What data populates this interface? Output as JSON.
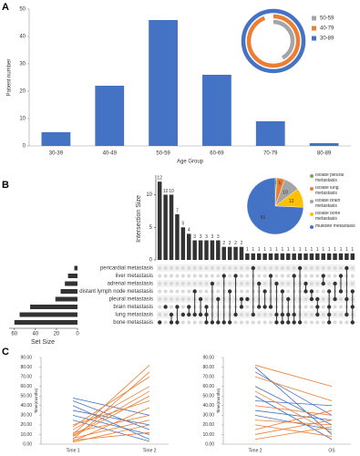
{
  "chart_data": [
    {
      "type": "bar",
      "panel_label": "A",
      "y_label": "Patient number",
      "x_label": "Age Group",
      "categories": [
        "30-39",
        "40-49",
        "50-59",
        "60-69",
        "70-79",
        "80-89"
      ],
      "values": [
        5,
        22,
        46,
        26,
        9,
        1
      ],
      "color": "#4472c4",
      "ylim": [
        0,
        50
      ],
      "yticks": [
        0,
        10,
        20,
        30,
        40,
        50
      ]
    },
    {
      "type": "donut",
      "series": [
        {
          "name": "50-59",
          "color": "#a5a5a5",
          "values": [
            42
          ]
        },
        {
          "name": "40-79",
          "color": "#ed7d31",
          "values": [
            94
          ]
        },
        {
          "name": "30-89",
          "color": "#4472c4",
          "values": [
            100
          ]
        }
      ]
    },
    {
      "type": "upset",
      "panel_label": "B",
      "y_label": "Intersection Size",
      "x_label": "Set Size",
      "sets": [
        "pericardial  metastasis",
        "liver  metastasis",
        "adrenal  metastasis",
        "distant lymph node metastasis",
        "pleural  metastasis",
        "brain  metastasis",
        "lung  metastasis",
        "bone  metastasis"
      ],
      "set_sizes": [
        3,
        9,
        12,
        16,
        21,
        45,
        55,
        60
      ],
      "values": [
        12,
        10,
        10,
        7,
        5,
        4,
        3,
        3,
        3,
        3,
        3,
        2,
        2,
        2,
        2,
        1,
        1,
        1,
        1,
        1,
        1,
        1,
        1,
        1,
        1,
        1,
        1,
        1,
        1,
        1,
        1,
        1,
        1,
        1
      ],
      "memberships": [
        [
          7
        ],
        [
          5
        ],
        [
          6,
          7
        ],
        [
          5,
          7
        ],
        [
          6
        ],
        [
          5,
          6
        ],
        [
          3,
          6
        ],
        [
          4,
          6
        ],
        [
          5,
          6,
          7
        ],
        [
          2,
          7
        ],
        [
          4,
          7
        ],
        [
          1,
          7
        ],
        [
          3,
          7
        ],
        [
          1,
          6
        ],
        [
          4,
          5
        ],
        [
          4
        ],
        [
          0,
          6
        ],
        [
          2,
          5
        ],
        [
          3,
          5
        ],
        [
          1,
          5
        ],
        [
          2,
          6,
          7
        ],
        [
          3,
          6,
          7
        ],
        [
          4,
          6,
          7
        ],
        [
          1,
          6,
          7
        ],
        [
          0,
          7
        ],
        [
          2,
          3
        ],
        [
          3,
          4
        ],
        [
          4,
          5,
          6
        ],
        [
          1,
          2
        ],
        [
          3,
          5,
          6,
          7
        ],
        [
          2,
          4
        ],
        [
          1,
          3
        ],
        [
          0,
          4,
          6
        ],
        [
          3,
          5,
          7
        ]
      ],
      "color": "#333333",
      "ylim": [
        0,
        13
      ],
      "yticks": [
        0,
        5,
        10
      ],
      "xlim": [
        65,
        0
      ],
      "xticks": [
        60,
        40,
        20,
        0
      ]
    },
    {
      "type": "pie",
      "categories": [
        "Isolate pleural metastasis",
        "Isolate lung metastasis",
        "Isolate brain metastasis",
        "Isolate bone metastasis",
        "multisite metastasis"
      ],
      "values": [
        1,
        5,
        10,
        12,
        81
      ],
      "colors": [
        "#70ad47",
        "#ed7d31",
        "#a5a5a5",
        "#ffc000",
        "#4472c4"
      ]
    },
    {
      "type": "line",
      "panel_label": "C",
      "y_label": "Time(months)",
      "categories": [
        "Time 1",
        "Time 2"
      ],
      "ylim": [
        0,
        90
      ],
      "yticks": [
        {
          "value": 0,
          "label": "0.00"
        },
        {
          "value": 10,
          "label": "10.00"
        },
        {
          "value": 20,
          "label": "20.00"
        },
        {
          "value": 30,
          "label": "30.00"
        },
        {
          "value": 40,
          "label": "40.00"
        },
        {
          "value": 50,
          "label": "50.00"
        },
        {
          "value": 60,
          "label": "60.00"
        },
        {
          "value": 70,
          "label": "70.00"
        },
        {
          "value": 80,
          "label": "80.00"
        },
        {
          "value": 90,
          "label": "90.00"
        }
      ],
      "series": [
        {
          "color": "#4472c4",
          "values": [
            48,
            30
          ]
        },
        {
          "color": "#4472c4",
          "values": [
            40,
            5
          ]
        },
        {
          "color": "#4472c4",
          "values": [
            35,
            20
          ]
        },
        {
          "color": "#4472c4",
          "values": [
            30,
            10
          ]
        },
        {
          "color": "#4472c4",
          "values": [
            25,
            3
          ]
        },
        {
          "color": "#4472c4",
          "values": [
            45,
            15
          ]
        },
        {
          "color": "#ed7d31",
          "values": [
            10,
            82
          ]
        },
        {
          "color": "#ed7d31",
          "values": [
            5,
            75
          ]
        },
        {
          "color": "#ed7d31",
          "values": [
            15,
            60
          ]
        },
        {
          "color": "#ed7d31",
          "values": [
            8,
            50
          ]
        },
        {
          "color": "#ed7d31",
          "values": [
            20,
            45
          ]
        },
        {
          "color": "#ed7d31",
          "values": [
            3,
            38
          ]
        },
        {
          "color": "#ed7d31",
          "values": [
            12,
            30
          ]
        },
        {
          "color": "#ed7d31",
          "values": [
            6,
            25
          ]
        },
        {
          "color": "#ed7d31",
          "values": [
            2,
            20
          ]
        },
        {
          "color": "#ed7d31",
          "values": [
            18,
            70
          ]
        },
        {
          "color": "#ed7d31",
          "values": [
            4,
            12
          ]
        },
        {
          "color": "#ed7d31",
          "values": [
            9,
            55
          ]
        }
      ]
    },
    {
      "type": "line",
      "y_label": "Time(months)",
      "categories": [
        "Time 2",
        "OS"
      ],
      "ylim": [
        0,
        90
      ],
      "yticks": [
        {
          "value": 0,
          "label": "0.00"
        },
        {
          "value": 10,
          "label": "10.00"
        },
        {
          "value": 20,
          "label": "20.00"
        },
        {
          "value": 30,
          "label": "30.00"
        },
        {
          "value": 40,
          "label": "40.00"
        },
        {
          "value": 50,
          "label": "50.00"
        },
        {
          "value": 60,
          "label": "60.00"
        },
        {
          "value": 70,
          "label": "70.00"
        },
        {
          "value": 80,
          "label": "80.00"
        },
        {
          "value": 90,
          "label": "90.00"
        }
      ],
      "series": [
        {
          "color": "#4472c4",
          "values": [
            80,
            10
          ]
        },
        {
          "color": "#4472c4",
          "values": [
            75,
            30
          ]
        },
        {
          "color": "#4472c4",
          "values": [
            60,
            20
          ]
        },
        {
          "color": "#4472c4",
          "values": [
            50,
            5
          ]
        },
        {
          "color": "#4472c4",
          "values": [
            45,
            40
          ]
        },
        {
          "color": "#4472c4",
          "values": [
            35,
            25
          ]
        },
        {
          "color": "#4472c4",
          "values": [
            30,
            15
          ]
        },
        {
          "color": "#ed7d31",
          "values": [
            82,
            60
          ]
        },
        {
          "color": "#ed7d31",
          "values": [
            70,
            45
          ]
        },
        {
          "color": "#ed7d31",
          "values": [
            40,
            30
          ]
        },
        {
          "color": "#ed7d31",
          "values": [
            25,
            20
          ]
        },
        {
          "color": "#ed7d31",
          "values": [
            20,
            8
          ]
        },
        {
          "color": "#ed7d31",
          "values": [
            15,
            35
          ]
        },
        {
          "color": "#ed7d31",
          "values": [
            10,
            25
          ]
        },
        {
          "color": "#ed7d31",
          "values": [
            5,
            18
          ]
        },
        {
          "color": "#ed7d31",
          "values": [
            55,
            12
          ]
        }
      ]
    }
  ]
}
